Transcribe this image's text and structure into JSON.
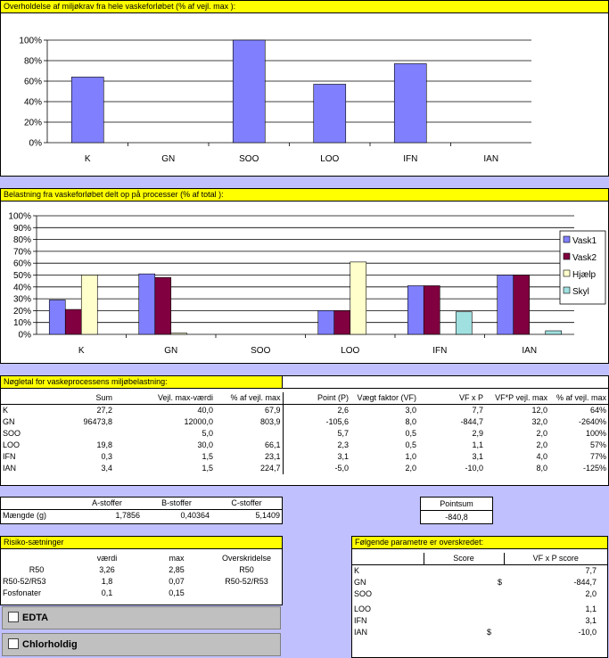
{
  "chart1": {
    "title": "Overholdelse af miljøkrav fra hele vaskeforløbet (% af vejl. max ):",
    "chart_data": {
      "type": "bar",
      "categories": [
        "K",
        "GN",
        "SOO",
        "LOO",
        "IFN",
        "IAN"
      ],
      "series": [
        {
          "values": [
            64,
            0,
            100,
            57,
            77,
            0
          ]
        }
      ],
      "ylim": [
        0,
        100
      ],
      "yticks": [
        "0%",
        "20%",
        "40%",
        "60%",
        "80%",
        "100%"
      ],
      "color": "#8080ff"
    }
  },
  "chart2": {
    "title": "Belastning fra vaskeforløbet delt op på processer (% af total ):",
    "chart_data": {
      "type": "bar",
      "categories": [
        "K",
        "GN",
        "SOO",
        "LOO",
        "IFN",
        "IAN"
      ],
      "series": [
        {
          "name": "Vask1",
          "color": "#8080ff",
          "values": [
            29,
            51,
            0,
            20,
            41,
            50
          ]
        },
        {
          "name": "Vask2",
          "color": "#800040",
          "values": [
            21,
            48,
            0,
            20,
            41,
            50
          ]
        },
        {
          "name": "Hjælp",
          "color": "#ffffcc",
          "values": [
            50,
            1,
            0,
            61,
            0,
            0
          ]
        },
        {
          "name": "Skyl",
          "color": "#a0e0e0",
          "values": [
            0,
            0,
            0,
            0,
            19,
            3
          ]
        }
      ],
      "ylim": [
        0,
        100
      ],
      "yticks": [
        "0%",
        "10%",
        "20%",
        "30%",
        "40%",
        "50%",
        "60%",
        "70%",
        "80%",
        "90%",
        "100%"
      ],
      "legend": "right"
    }
  },
  "noegletal": {
    "title": "Nøgletal for vaskeprocessens miljøbelastning:",
    "headers": [
      "",
      "Sum",
      "Vejl. max-værdi",
      "% af vejl. max",
      "Point (P)",
      "Vægt faktor (VF)",
      "VF x P",
      "VF*P vejl. max",
      "% af vejl. max"
    ],
    "rows": [
      [
        "K",
        "27,2",
        "40,0",
        "67,9",
        "2,6",
        "3,0",
        "7,7",
        "12,0",
        "64%"
      ],
      [
        "GN",
        "96473,8",
        "12000,0",
        "803,9",
        "-105,6",
        "8,0",
        "-844,7",
        "32,0",
        "-2640%"
      ],
      [
        "SOO",
        "",
        "5,0",
        "",
        "5,7",
        "0,5",
        "2,9",
        "2,0",
        "100%"
      ],
      [
        "LOO",
        "19,8",
        "30,0",
        "66,1",
        "2,3",
        "0,5",
        "1,1",
        "2,0",
        "57%"
      ],
      [
        "IFN",
        "0,3",
        "1,5",
        "23,1",
        "3,1",
        "1,0",
        "3,1",
        "4,0",
        "77%"
      ],
      [
        "IAN",
        "3,4",
        "1,5",
        "224,7",
        "-5,0",
        "2,0",
        "-10,0",
        "8,0",
        "-125%"
      ]
    ]
  },
  "stoffer": {
    "headers": [
      "",
      "A-stoffer",
      "B-stoffer",
      "C-stoffer"
    ],
    "row": [
      "Mængde (g)",
      "1,7856",
      "0,40364",
      "5,1409"
    ]
  },
  "pointsum": {
    "label": "Pointsum",
    "value": "-840,8"
  },
  "risiko": {
    "title": "Risiko-sætninger",
    "headers": [
      "",
      "værdi",
      "max",
      "Overskridelse"
    ],
    "rows": [
      [
        "R50",
        "3,26",
        "2,85",
        "R50"
      ],
      [
        "R50-52/R53",
        "1,8",
        "0,07",
        "R50-52/R53"
      ],
      [
        "Fosfonater",
        "0,1",
        "0,15",
        ""
      ]
    ]
  },
  "edta": {
    "label": "EDTA"
  },
  "chlor": {
    "label": "Chlorholdig"
  },
  "parametre": {
    "title": "Følgende parametre er overskredet:",
    "headers": [
      "",
      "Score",
      "VF x P score"
    ],
    "rows": [
      [
        "K",
        "",
        "7,7"
      ],
      [
        "GN",
        "$",
        "-844,7"
      ],
      [
        "SOO",
        "",
        "2,0"
      ],
      [
        "LOO",
        "",
        "1,1"
      ],
      [
        "IFN",
        "",
        "3,1"
      ],
      [
        "IAN",
        "$",
        "-10,0"
      ]
    ]
  }
}
